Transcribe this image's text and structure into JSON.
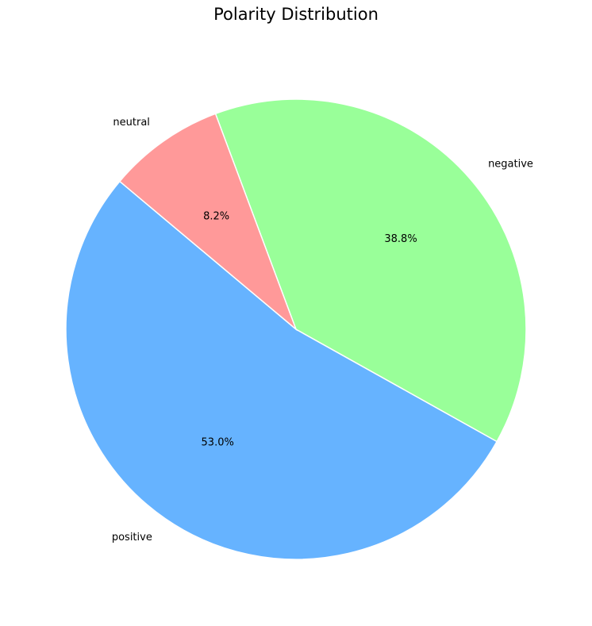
{
  "chart_data": {
    "type": "pie",
    "title": "Polarity Distribution",
    "categories": [
      "positive",
      "negative",
      "neutral"
    ],
    "values": [
      53.0,
      38.8,
      8.2
    ],
    "value_labels": [
      "53.0%",
      "38.8%",
      "8.2%"
    ],
    "colors": [
      "#66b3ff",
      "#99ff99",
      "#ff9999"
    ]
  }
}
